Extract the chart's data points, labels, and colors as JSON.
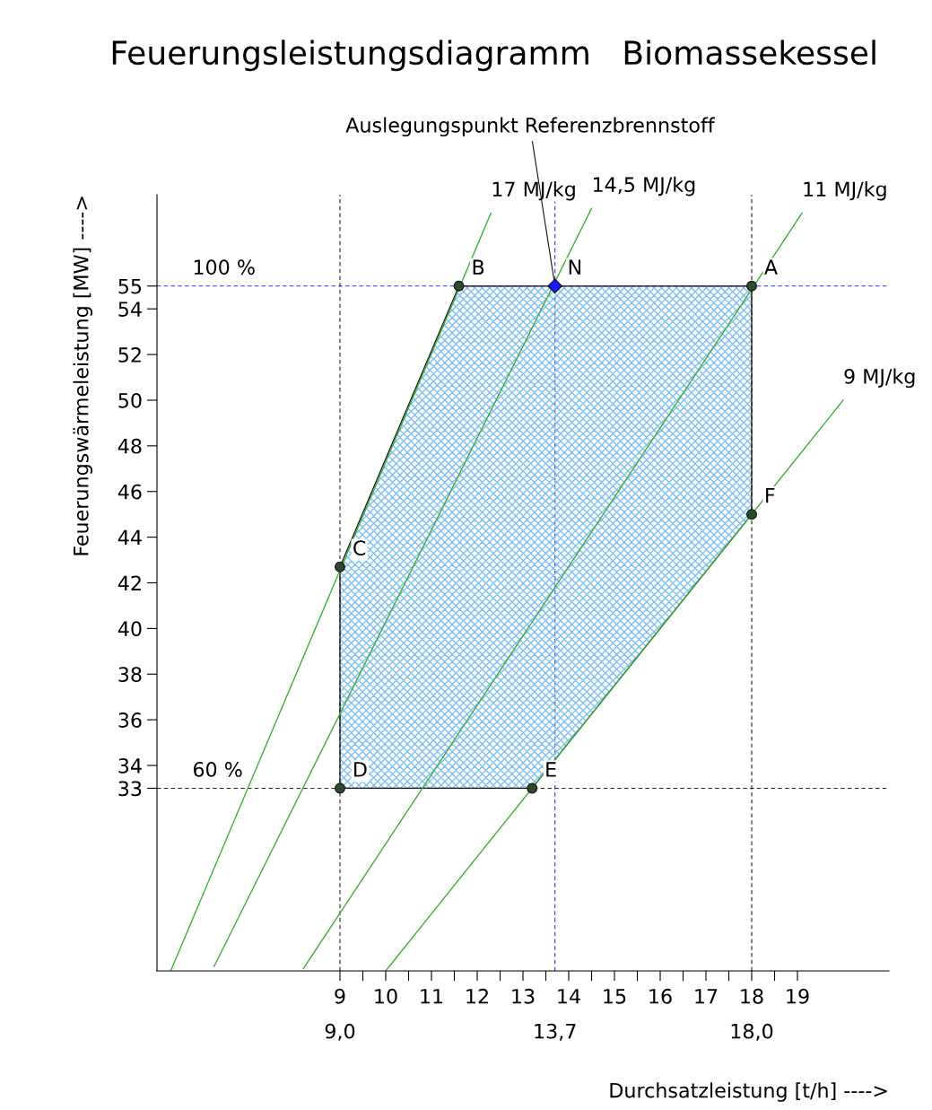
{
  "chart_data": {
    "type": "line",
    "title": "Feuerungsleistungsdiagramm   Biomassekessel",
    "xlabel": "Durchsatzleistung [t/h] ---->",
    "ylabel": "Feuerungswärmeleistung [MW] ---->",
    "xlim": [
      5,
      21
    ],
    "ylim": [
      25,
      59
    ],
    "xticks": [
      9,
      {
        "value": 9.5,
        "label": null
      },
      10,
      {
        "value": 10.5,
        "label": null
      },
      11,
      {
        "value": 11.5,
        "label": null
      },
      12,
      {
        "value": 12.5,
        "label": null
      },
      13,
      {
        "value": 13.5,
        "label": null
      },
      14,
      {
        "value": 14.5,
        "label": null
      },
      15,
      {
        "value": 15.5,
        "label": null
      },
      16,
      {
        "value": 16.5,
        "label": null
      },
      17,
      {
        "value": 17.5,
        "label": null
      },
      18,
      {
        "value": 18.5,
        "label": null
      },
      19
    ],
    "yticks": [
      33,
      34,
      36,
      38,
      40,
      42,
      44,
      46,
      48,
      50,
      52,
      54,
      55
    ],
    "grid": false,
    "series": [
      {
        "type": "area",
        "color": "#7fbff0",
        "x": [
          9,
          11.6,
          18,
          18,
          13.2,
          9
        ],
        "values": [
          42.7,
          55,
          55,
          45,
          33,
          33
        ]
      },
      {
        "name": "17 MJ/kg",
        "color": "#3cb035",
        "x": [
          5.3,
          12.3
        ],
        "values": [
          25,
          58.2
        ]
      },
      {
        "name": "14,5 MJ/kg",
        "color": "#3cb035",
        "x": [
          6.25,
          14.5
        ],
        "values": [
          25.2,
          58.4
        ]
      },
      {
        "name": "11 MJ/kg",
        "color": "#3cb035",
        "x": [
          8.2,
          19.1
        ],
        "values": [
          25.1,
          58.2
        ]
      },
      {
        "name": "9 MJ/kg",
        "color": "#3cb035",
        "x": [
          10,
          20
        ],
        "values": [
          25,
          50
        ]
      },
      {
        "type": "scatter",
        "color": "#2e4a2e",
        "marker": "circle",
        "x": [
          18,
          11.6,
          9,
          9,
          13.2,
          18
        ],
        "values": [
          55,
          55,
          42.7,
          33,
          33,
          45
        ]
      },
      {
        "type": "scatter",
        "color": "#1a1aff",
        "marker": "diamond",
        "x": [
          13.7
        ],
        "values": [
          55
        ]
      }
    ],
    "ref_lines": [
      {
        "axis": "y",
        "value": 55,
        "color": "#3030ff",
        "line_style": "dashed"
      },
      {
        "axis": "y",
        "value": 33,
        "color": "#222222",
        "line_style": "dashed"
      },
      {
        "axis": "x",
        "value": 9,
        "label": "9,0",
        "color": "#222222",
        "line_style": "dashed"
      },
      {
        "axis": "x",
        "value": 13.7,
        "label": "13,7",
        "color": "#3030ff",
        "line_style": "dashed"
      },
      {
        "axis": "x",
        "value": 18,
        "label": "18,0",
        "color": "#222222",
        "line_style": "dashed"
      }
    ],
    "annotations": [
      {
        "text": "A",
        "x": 18,
        "y": 55
      },
      {
        "text": "B",
        "x": 11.6,
        "y": 55
      },
      {
        "text": "N",
        "x": 13.7,
        "y": 55
      },
      {
        "text": "C",
        "x": 9,
        "y": 42.7
      },
      {
        "text": "D",
        "x": 9,
        "y": 33
      },
      {
        "text": "E",
        "x": 13.2,
        "y": 33
      },
      {
        "text": "F",
        "x": 18,
        "y": 45
      },
      {
        "text": "100 %",
        "x": 5.5,
        "y": 55
      },
      {
        "text": "60 %",
        "x": 5.5,
        "y": 33
      },
      {
        "text": "Auslegungspunkt Referenzbrennstoff",
        "x": 13.7,
        "y": 55
      }
    ]
  }
}
